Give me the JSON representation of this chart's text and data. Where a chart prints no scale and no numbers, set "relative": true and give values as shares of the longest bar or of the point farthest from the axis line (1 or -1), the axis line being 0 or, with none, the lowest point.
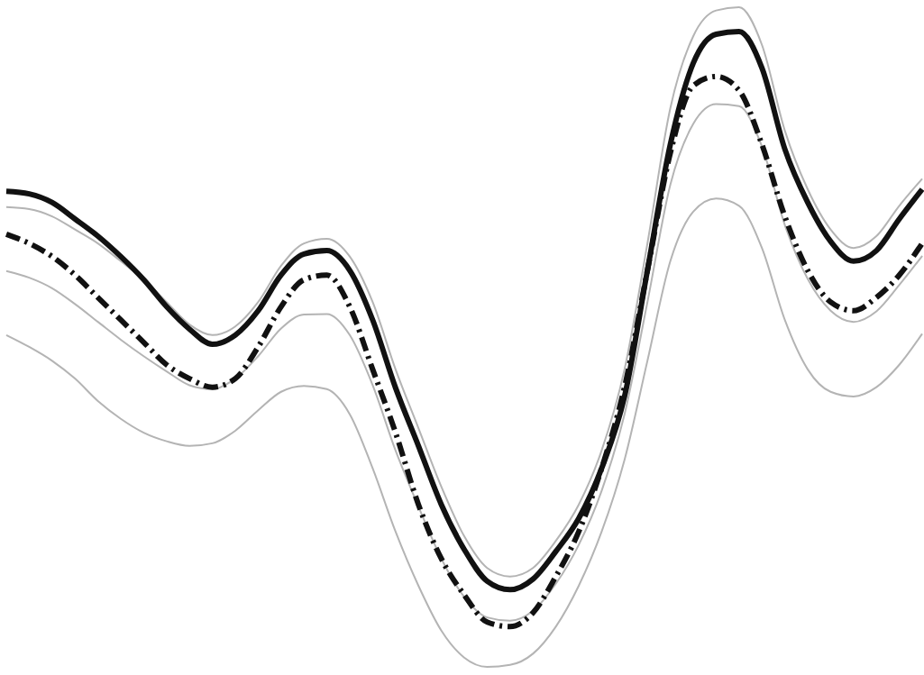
{
  "chart_data": {
    "type": "line",
    "relative": true,
    "tick_labels": false,
    "categories": [
      null,
      null,
      null,
      null,
      null,
      null,
      null,
      null,
      null,
      null,
      null,
      null,
      null,
      null,
      null,
      null,
      null,
      null,
      null,
      null,
      null,
      null,
      null,
      null,
      null,
      null,
      null,
      null,
      null,
      null,
      null,
      null,
      null,
      null,
      null,
      null,
      null,
      null,
      null,
      null,
      null
    ],
    "series": [
      {
        "color": "#b4b4b4",
        "line_style": "solid",
        "values": [
          0.697,
          0.694,
          0.683,
          0.663,
          0.642,
          0.615,
          0.587,
          0.553,
          0.519,
          0.503,
          0.516,
          0.553,
          0.608,
          0.642,
          0.649,
          0.622,
          0.553,
          0.451,
          0.362,
          0.273,
          0.198,
          0.15,
          0.137,
          0.15,
          0.191,
          0.246,
          0.328,
          0.451,
          0.642,
          0.847,
          0.956,
          0.995,
          1,
          0.943,
          0.813,
          0.724,
          0.663,
          0.635,
          0.653,
          0.699,
          0.74
        ]
      },
      {
        "color": "#b4b4b4",
        "line_style": "solid",
        "values": [
          0.6,
          0.59,
          0.574,
          0.55,
          0.523,
          0.496,
          0.471,
          0.448,
          0.427,
          0.421,
          0.437,
          0.471,
          0.513,
          0.534,
          0.535,
          0.503,
          0.427,
          0.328,
          0.243,
          0.164,
          0.106,
          0.075,
          0.07,
          0.085,
          0.126,
          0.185,
          0.267,
          0.383,
          0.553,
          0.731,
          0.823,
          0.853,
          0.85,
          0.789,
          0.67,
          0.588,
          0.54,
          0.523,
          0.539,
          0.579,
          0.623
        ]
      },
      {
        "color": "#b4b4b4",
        "line_style": "solid",
        "values": [
          0.503,
          0.485,
          0.464,
          0.437,
          0.403,
          0.376,
          0.355,
          0.342,
          0.335,
          0.339,
          0.358,
          0.389,
          0.417,
          0.426,
          0.421,
          0.383,
          0.301,
          0.205,
          0.123,
          0.055,
          0.014,
          0,
          0.003,
          0.02,
          0.061,
          0.123,
          0.205,
          0.314,
          0.464,
          0.615,
          0.69,
          0.71,
          0.699,
          0.635,
          0.526,
          0.451,
          0.417,
          0.41,
          0.424,
          0.458,
          0.505
        ]
      },
      {
        "color": "#111111",
        "line_style": "dashdot",
        "values": [
          0.656,
          0.642,
          0.622,
          0.594,
          0.56,
          0.526,
          0.492,
          0.458,
          0.437,
          0.424,
          0.437,
          0.485,
          0.546,
          0.587,
          0.594,
          0.546,
          0.451,
          0.355,
          0.246,
          0.164,
          0.109,
          0.068,
          0.061,
          0.082,
          0.137,
          0.205,
          0.301,
          0.424,
          0.601,
          0.779,
          0.881,
          0.895,
          0.874,
          0.792,
          0.683,
          0.601,
          0.553,
          0.54,
          0.56,
          0.594,
          0.642
        ]
      },
      {
        "color": "#111111",
        "line_style": "solid",
        "values": [
          0.721,
          0.717,
          0.704,
          0.679,
          0.653,
          0.622,
          0.587,
          0.546,
          0.512,
          0.489,
          0.503,
          0.54,
          0.594,
          0.626,
          0.631,
          0.601,
          0.526,
          0.423,
          0.335,
          0.246,
          0.178,
          0.13,
          0.117,
          0.133,
          0.175,
          0.225,
          0.301,
          0.41,
          0.601,
          0.792,
          0.915,
          0.959,
          0.963,
          0.908,
          0.785,
          0.704,
          0.645,
          0.615,
          0.631,
          0.679,
          0.724
        ]
      }
    ]
  }
}
